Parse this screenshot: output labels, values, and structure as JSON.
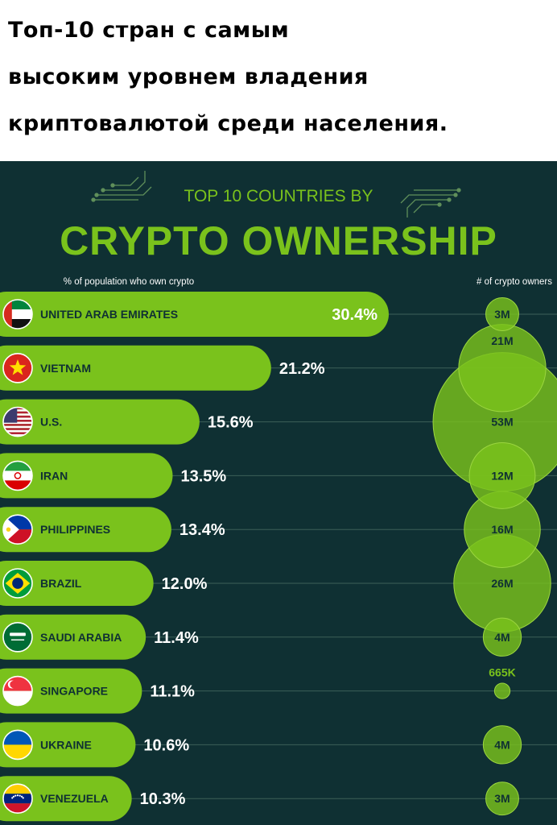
{
  "caption": {
    "line1": "Топ-10 стран с самым",
    "line2": "высоким уровнем владения",
    "line3": "криптовалютой среди населения."
  },
  "colors": {
    "background": "#0f3033",
    "accent": "#7ac21c",
    "text_dark": "#0f3033",
    "text_light": "#ffffff"
  },
  "chart_data": {
    "type": "bar",
    "pretitle": "TOP 10 COUNTRIES BY",
    "title": "CRYPTO OWNERSHIP",
    "left_header": "% of population who own crypto",
    "right_header": "# of crypto owners",
    "categories": [
      "UNITED ARAB EMIRATES",
      "VIETNAM",
      "U.S.",
      "IRAN",
      "PHILIPPINES",
      "BRAZIL",
      "SAUDI ARABIA",
      "SINGAPORE",
      "UKRAINE",
      "VENEZUELA"
    ],
    "values": [
      30.4,
      21.2,
      15.6,
      13.5,
      13.4,
      12.0,
      11.4,
      11.1,
      10.6,
      10.3
    ],
    "value_labels": [
      "30.4%",
      "21.2%",
      "15.6%",
      "13.5%",
      "13.4%",
      "12.0%",
      "11.4%",
      "11.1%",
      "10.6%",
      "10.3%"
    ],
    "owners": [
      3000000,
      21000000,
      53000000,
      12000000,
      16000000,
      26000000,
      4000000,
      665000,
      4000000,
      3000000
    ],
    "owner_labels": [
      "3M",
      "21M",
      "53M",
      "12M",
      "16M",
      "26M",
      "4M",
      "665K",
      "4M",
      "3M"
    ],
    "flags": [
      "uae-flag-icon",
      "vietnam-flag-icon",
      "us-flag-icon",
      "iran-flag-icon",
      "philippines-flag-icon",
      "brazil-flag-icon",
      "saudi-arabia-flag-icon",
      "singapore-flag-icon",
      "ukraine-flag-icon",
      "venezuela-flag-icon"
    ]
  }
}
